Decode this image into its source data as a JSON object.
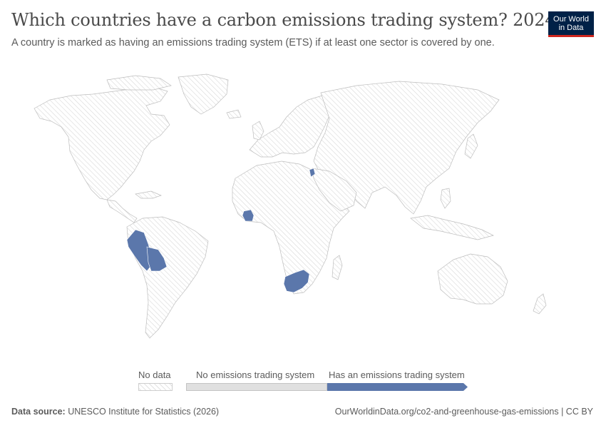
{
  "header": {
    "title": "Which countries have a carbon emissions trading system? 2024",
    "subtitle": "A country is marked as having an emissions trading system (ETS) if at least one sector is covered by one."
  },
  "logo": {
    "line1": "Our World",
    "line2": "in Data"
  },
  "legend": {
    "no_data": "No data",
    "no_ets": "No emissions trading system",
    "has_ets": "Has an emissions trading system"
  },
  "footer": {
    "source_label": "Data source:",
    "source_text": "UNESCO Institute for Statistics (2026)",
    "url": "OurWorldinData.org/co2-and-greenhouse-gas-emissions | CC BY"
  },
  "colors": {
    "has_ets": "#5b77ab",
    "no_ets": "#e0e0e0",
    "no_data_hatch": "#d4d4d4",
    "brand": "#002147",
    "brand_accent": "#ce261e"
  },
  "map_data": {
    "year": "2024",
    "countries_with_ets": [
      "Peru",
      "Bolivia",
      "Côte d'Ivoire",
      "South Africa",
      "Jordan"
    ]
  }
}
